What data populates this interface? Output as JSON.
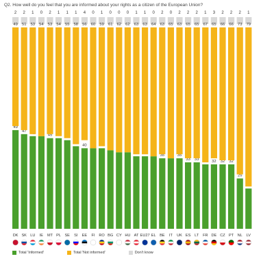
{
  "chart_data": {
    "type": "bar",
    "stacked": true,
    "orientation": "vertical",
    "title": "Q2. How well do you feel that you are informed about your rights as a citizen of the European Union?",
    "categories": [
      "DK",
      "SK",
      "LU",
      "IE",
      "MT",
      "PL",
      "SE",
      "SI",
      "EE",
      "FI",
      "RO",
      "BG",
      "CY",
      "HU",
      "AT",
      "EU27",
      "EL",
      "BE",
      "IT",
      "UK",
      "ES",
      "LT",
      "FR",
      "DE",
      "CZ",
      "PT",
      "NL",
      "LV"
    ],
    "series": [
      {
        "name": "Total 'Informed'",
        "color": "#4aa02c",
        "values": [
          49,
          47,
          46,
          46,
          45,
          45,
          44,
          41,
          40,
          40,
          40,
          39,
          38,
          38,
          36,
          36,
          36,
          35,
          35,
          35,
          33,
          33,
          32,
          32,
          32,
          32,
          25,
          20
        ]
      },
      {
        "name": "Total 'Not informed'",
        "color": "#f5b419",
        "values": [
          49,
          51,
          53,
          54,
          53,
          54,
          55,
          58,
          56,
          60,
          59,
          61,
          62,
          62,
          63,
          63,
          64,
          63,
          65,
          63,
          65,
          65,
          67,
          65,
          66,
          66,
          73,
          79
        ]
      },
      {
        "name": "Don't know",
        "color": "#d9d9d9",
        "values": [
          2,
          2,
          1,
          0,
          2,
          1,
          1,
          1,
          4,
          0,
          1,
          0,
          0,
          0,
          1,
          1,
          0,
          2,
          0,
          2,
          2,
          2,
          1,
          3,
          2,
          2,
          2,
          1
        ]
      }
    ],
    "ylim": [
      0,
      100
    ],
    "grid": false,
    "legend_position": "bottom-left"
  },
  "flags": {
    "DK": [
      "#c8102e"
    ],
    "SK": [
      "#ffffff",
      "#0b4ea2",
      "#ee1c25"
    ],
    "LU": [
      "#ed2939",
      "#ffffff",
      "#00a1de"
    ],
    "IE": [
      "#169b62",
      "#ffffff",
      "#ff883e"
    ],
    "MT": [
      "#ffffff",
      "#cf142b"
    ],
    "PL": [
      "#ffffff",
      "#dc143c"
    ],
    "SE": [
      "#006aa7"
    ],
    "SI": [
      "#ffffff",
      "#0000ff",
      "#ff0000"
    ],
    "EE": [
      "#0072ce",
      "#000000",
      "#ffffff"
    ],
    "FI": [
      "#ffffff"
    ],
    "RO": [
      "#002b7f",
      "#fcd116",
      "#ce1126"
    ],
    "BG": [
      "#ffffff",
      "#00966e",
      "#d62612"
    ],
    "CY": [
      "#ffffff"
    ],
    "HU": [
      "#cd2a3e",
      "#ffffff",
      "#436f4d"
    ],
    "AT": [
      "#ed2939",
      "#ffffff",
      "#ed2939"
    ],
    "EU27": [
      "#003399"
    ],
    "EL": [
      "#0d5eaf"
    ],
    "BE": [
      "#000000",
      "#fdda24",
      "#ef3340"
    ],
    "IT": [
      "#009246",
      "#ffffff",
      "#ce2b37"
    ],
    "UK": [
      "#012169"
    ],
    "ES": [
      "#aa151b",
      "#f1bf00",
      "#aa151b"
    ],
    "LT": [
      "#fdb913",
      "#006a44",
      "#c1272d"
    ],
    "FR": [
      "#0055a4",
      "#ffffff",
      "#ef4135"
    ],
    "DE": [
      "#000000",
      "#dd0000",
      "#ffce00"
    ],
    "CZ": [
      "#ffffff",
      "#d7141a"
    ],
    "PT": [
      "#006600",
      "#ff0000"
    ],
    "NL": [
      "#ae1c28",
      "#ffffff",
      "#21468b"
    ],
    "LV": [
      "#9e3039",
      "#ffffff",
      "#9e3039"
    ]
  },
  "legend": {
    "informed": "Total 'Informed'",
    "not_informed": "Total 'Not informed'",
    "dont_know": "Don't know"
  }
}
